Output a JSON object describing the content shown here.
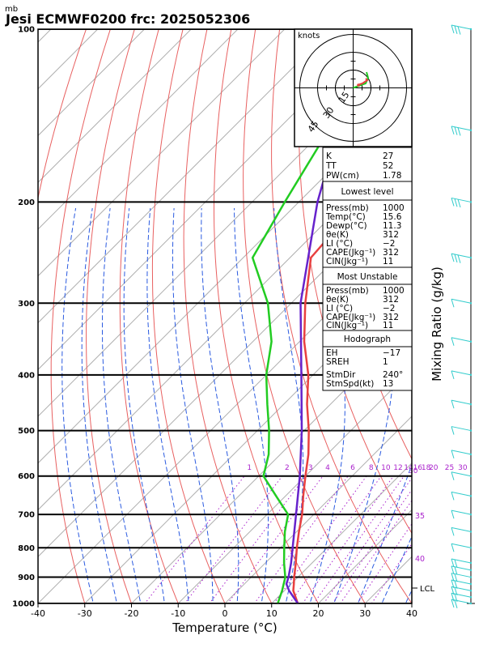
{
  "header": {
    "unit_label": "mb",
    "title": "Jesi ECMWF0200  frc: 2025052306"
  },
  "axes": {
    "xlabel": "Temperature (°C)",
    "right_label": "Mixing Ratio (g/kg)",
    "x_ticks": [
      "-40",
      "-30",
      "-20",
      "-10",
      "0",
      "10",
      "20",
      "30",
      "40"
    ],
    "p_ticks": [
      "100",
      "200",
      "300",
      "400",
      "500",
      "600",
      "700",
      "800",
      "900",
      "1000"
    ],
    "mixing_ratio_labels": [
      "1",
      "2",
      "3",
      "4",
      "6",
      "8",
      "10",
      "12",
      "14",
      "16",
      "18",
      "20",
      "25",
      "30"
    ],
    "theta_e_labels": [
      "30",
      "35",
      "40"
    ],
    "lcl_label": "LCL"
  },
  "hodograph": {
    "unit_label": "knots",
    "ring_labels": [
      "15",
      "30",
      "45"
    ]
  },
  "indices": {
    "top": [
      {
        "label": "K",
        "value": "27"
      },
      {
        "label": "TT",
        "value": "52"
      },
      {
        "label": "PW(cm)",
        "value": "1.78"
      }
    ],
    "lowest_level": {
      "title": "Lowest level",
      "rows": [
        {
          "label": "Press(mb)",
          "value": "1000"
        },
        {
          "label": "Temp(°C)",
          "value": "15.6"
        },
        {
          "label": "Dewp(°C)",
          "value": "11.3"
        },
        {
          "label": "θe(K)",
          "value": "312"
        },
        {
          "label": "LI (°C)",
          "value": "−2"
        },
        {
          "label": "CAPE(Jkg⁻¹)",
          "value": "312"
        },
        {
          "label": "CIN(Jkg⁻¹)",
          "value": "11"
        }
      ]
    },
    "most_unstable": {
      "title": "Most Unstable",
      "rows": [
        {
          "label": "Press(mb)",
          "value": "1000"
        },
        {
          "label": "θe(K)",
          "value": "312"
        },
        {
          "label": "LI (°C)",
          "value": "−2"
        },
        {
          "label": "CAPE(Jkg⁻¹)",
          "value": "312"
        },
        {
          "label": "CIN(Jkg⁻¹)",
          "value": "11"
        }
      ]
    },
    "hodograph_params": {
      "title": "Hodograph",
      "rows": [
        {
          "label": "EH",
          "value": "−17"
        },
        {
          "label": "SREH",
          "value": "1"
        },
        {
          "label": "StmDir",
          "value": "240°"
        },
        {
          "label": "StmSpd(kt)",
          "value": "13"
        }
      ]
    }
  },
  "colors": {
    "temperature": "#e84040",
    "dewpoint": "#22cc22",
    "parcel": "#6622cc",
    "isotherm": "#b0b0b0",
    "dry_adiabat": "#e86060",
    "moist_adiabat": "#2a5ae0",
    "mixing_ratio": "#aa22cc",
    "wind_barb": "#33cccc"
  },
  "chart_data": {
    "type": "skew-t",
    "xlabel": "Temperature (°C)",
    "ylabel": "mb",
    "xlim": [
      -40,
      40
    ],
    "ylim": [
      1000,
      100
    ],
    "y_scale": "log",
    "series": [
      {
        "name": "temperature",
        "points": [
          [
            1000,
            15.6
          ],
          [
            950,
            11.9
          ],
          [
            925,
            10.6
          ],
          [
            900,
            9.2
          ],
          [
            850,
            6.5
          ],
          [
            800,
            3.5
          ],
          [
            750,
            0.5
          ],
          [
            700,
            -2.5
          ],
          [
            650,
            -6.2
          ],
          [
            600,
            -10
          ],
          [
            550,
            -14
          ],
          [
            500,
            -19
          ],
          [
            450,
            -25
          ],
          [
            400,
            -31
          ],
          [
            350,
            -39
          ],
          [
            300,
            -47
          ],
          [
            250,
            -55.5
          ],
          [
            200,
            -57
          ],
          [
            150,
            -61
          ],
          [
            100,
            -62
          ]
        ]
      },
      {
        "name": "dewpoint",
        "points": [
          [
            1000,
            11.3
          ],
          [
            950,
            9.5
          ],
          [
            900,
            7.3
          ],
          [
            850,
            4
          ],
          [
            800,
            0.8
          ],
          [
            750,
            -2.5
          ],
          [
            700,
            -5.5
          ],
          [
            650,
            -12
          ],
          [
            600,
            -19
          ],
          [
            550,
            -22.5
          ],
          [
            500,
            -27.5
          ],
          [
            450,
            -33.5
          ],
          [
            400,
            -40
          ],
          [
            350,
            -46
          ],
          [
            300,
            -55
          ],
          [
            250,
            -68
          ],
          [
            200,
            -73
          ],
          [
            150,
            -79
          ],
          [
            120,
            -83
          ],
          [
            100,
            -86
          ]
        ]
      },
      {
        "name": "parcel",
        "points": [
          [
            1000,
            15.6
          ],
          [
            950,
            11
          ],
          [
            925,
            9
          ],
          [
            900,
            8
          ],
          [
            850,
            5.5
          ],
          [
            800,
            2.6
          ],
          [
            700,
            -3.8
          ],
          [
            600,
            -11.2
          ],
          [
            500,
            -20.5
          ],
          [
            400,
            -32.5
          ],
          [
            300,
            -48
          ],
          [
            200,
            -66
          ],
          [
            150,
            -77
          ],
          [
            120,
            -85
          ]
        ]
      }
    ],
    "wind_barbs_mb": [
      1000,
      975,
      950,
      925,
      900,
      875,
      850,
      800,
      750,
      700,
      650,
      600,
      550,
      500,
      450,
      400,
      350,
      300,
      250,
      200,
      150,
      100
    ]
  }
}
